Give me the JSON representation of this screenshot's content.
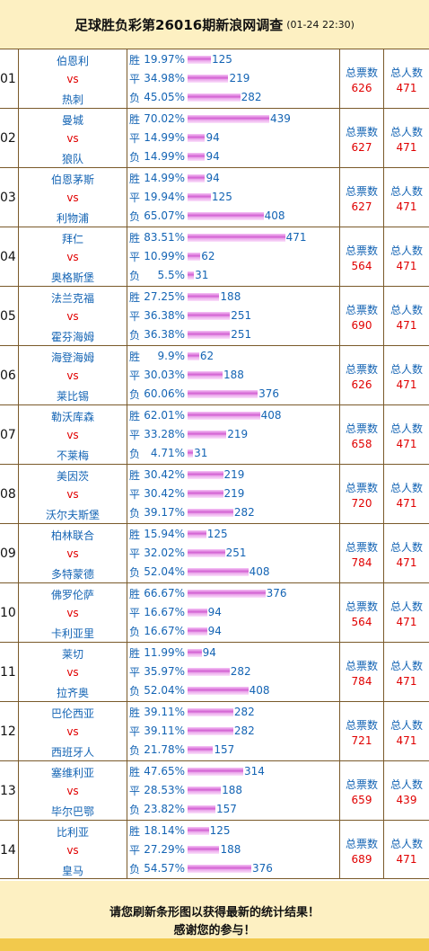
{
  "header": {
    "title": "足球胜负彩第26016期新浪网调查",
    "timestamp": "(01-24 22:30)"
  },
  "labels": {
    "win": "胜",
    "draw": "平",
    "lose": "负",
    "vs": "vs",
    "total_votes": "总票数",
    "total_people": "总人数"
  },
  "matches": [
    {
      "no": "01",
      "home": "伯恩利",
      "away": "热刺",
      "win_pct": "19.97%",
      "win_cnt": "125",
      "draw_pct": "34.98%",
      "draw_cnt": "219",
      "lose_pct": "45.05%",
      "lose_cnt": "282",
      "total_votes": "626",
      "total_people": "471"
    },
    {
      "no": "02",
      "home": "曼城",
      "away": "狼队",
      "win_pct": "70.02%",
      "win_cnt": "439",
      "draw_pct": "14.99%",
      "draw_cnt": "94",
      "lose_pct": "14.99%",
      "lose_cnt": "94",
      "total_votes": "627",
      "total_people": "471"
    },
    {
      "no": "03",
      "home": "伯恩茅斯",
      "away": "利物浦",
      "win_pct": "14.99%",
      "win_cnt": "94",
      "draw_pct": "19.94%",
      "draw_cnt": "125",
      "lose_pct": "65.07%",
      "lose_cnt": "408",
      "total_votes": "627",
      "total_people": "471"
    },
    {
      "no": "04",
      "home": "拜仁",
      "away": "奥格斯堡",
      "win_pct": "83.51%",
      "win_cnt": "471",
      "draw_pct": "10.99%",
      "draw_cnt": "62",
      "lose_pct": "5.5%",
      "lose_cnt": "31",
      "total_votes": "564",
      "total_people": "471"
    },
    {
      "no": "05",
      "home": "法兰克福",
      "away": "霍芬海姆",
      "win_pct": "27.25%",
      "win_cnt": "188",
      "draw_pct": "36.38%",
      "draw_cnt": "251",
      "lose_pct": "36.38%",
      "lose_cnt": "251",
      "total_votes": "690",
      "total_people": "471"
    },
    {
      "no": "06",
      "home": "海登海姆",
      "away": "莱比锡",
      "win_pct": "9.9%",
      "win_cnt": "62",
      "draw_pct": "30.03%",
      "draw_cnt": "188",
      "lose_pct": "60.06%",
      "lose_cnt": "376",
      "total_votes": "626",
      "total_people": "471"
    },
    {
      "no": "07",
      "home": "勒沃库森",
      "away": "不莱梅",
      "win_pct": "62.01%",
      "win_cnt": "408",
      "draw_pct": "33.28%",
      "draw_cnt": "219",
      "lose_pct": "4.71%",
      "lose_cnt": "31",
      "total_votes": "658",
      "total_people": "471"
    },
    {
      "no": "08",
      "home": "美因茨",
      "away": "沃尔夫斯堡",
      "win_pct": "30.42%",
      "win_cnt": "219",
      "draw_pct": "30.42%",
      "draw_cnt": "219",
      "lose_pct": "39.17%",
      "lose_cnt": "282",
      "total_votes": "720",
      "total_people": "471"
    },
    {
      "no": "09",
      "home": "柏林联合",
      "away": "多特蒙德",
      "win_pct": "15.94%",
      "win_cnt": "125",
      "draw_pct": "32.02%",
      "draw_cnt": "251",
      "lose_pct": "52.04%",
      "lose_cnt": "408",
      "total_votes": "784",
      "total_people": "471"
    },
    {
      "no": "10",
      "home": "佛罗伦萨",
      "away": "卡利亚里",
      "win_pct": "66.67%",
      "win_cnt": "376",
      "draw_pct": "16.67%",
      "draw_cnt": "94",
      "lose_pct": "16.67%",
      "lose_cnt": "94",
      "total_votes": "564",
      "total_people": "471"
    },
    {
      "no": "11",
      "home": "莱切",
      "away": "拉齐奥",
      "win_pct": "11.99%",
      "win_cnt": "94",
      "draw_pct": "35.97%",
      "draw_cnt": "282",
      "lose_pct": "52.04%",
      "lose_cnt": "408",
      "total_votes": "784",
      "total_people": "471"
    },
    {
      "no": "12",
      "home": "巴伦西亚",
      "away": "西班牙人",
      "win_pct": "39.11%",
      "win_cnt": "282",
      "draw_pct": "39.11%",
      "draw_cnt": "282",
      "lose_pct": "21.78%",
      "lose_cnt": "157",
      "total_votes": "721",
      "total_people": "471"
    },
    {
      "no": "13",
      "home": "塞维利亚",
      "away": "毕尔巴鄂",
      "win_pct": "47.65%",
      "win_cnt": "314",
      "draw_pct": "28.53%",
      "draw_cnt": "188",
      "lose_pct": "23.82%",
      "lose_cnt": "157",
      "total_votes": "659",
      "total_people": "439"
    },
    {
      "no": "14",
      "home": "比利亚",
      "away": "皇马",
      "win_pct": "18.14%",
      "win_cnt": "125",
      "draw_pct": "27.29%",
      "draw_cnt": "188",
      "lose_pct": "54.57%",
      "lose_cnt": "376",
      "total_votes": "689",
      "total_people": "471"
    }
  ],
  "footer": {
    "line1": "请您刷新条形图以获得最新的统计结果！",
    "line2": "感谢您的参与！"
  },
  "colors": {
    "header_bg": "#fdf0c2",
    "team_text": "#1464b4",
    "vs_text": "#e00000",
    "bar": "#d05ad0",
    "border": "#7a5a2a",
    "bottom_bar": "#f2c94c"
  }
}
